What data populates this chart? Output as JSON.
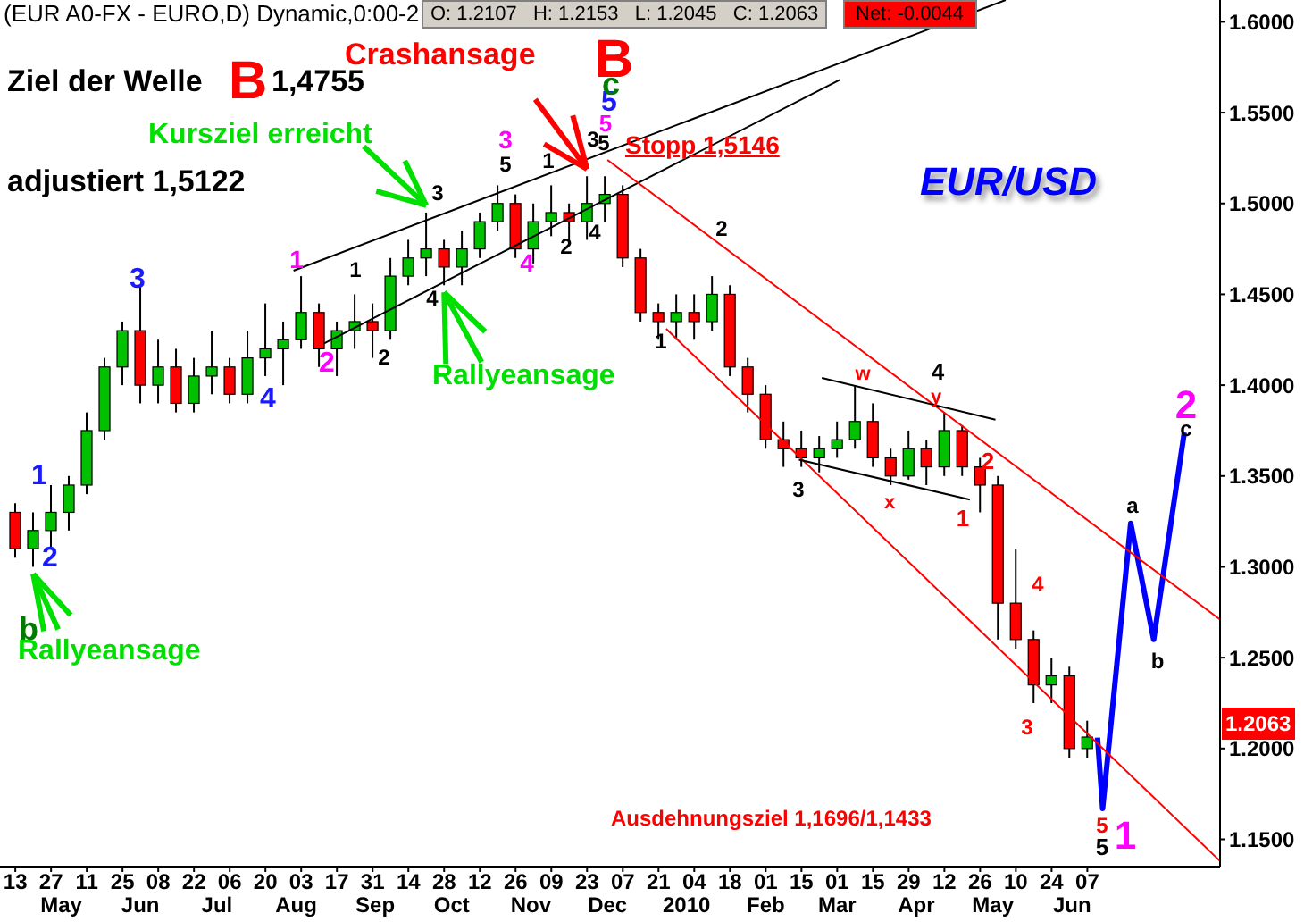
{
  "chart_data": {
    "type": "candlestick",
    "x": [
      "2009-04-13",
      "2009-04-20",
      "2009-04-27",
      "2009-05-04",
      "2009-05-11",
      "2009-05-18",
      "2009-05-25",
      "2009-06-01",
      "2009-06-08",
      "2009-06-15",
      "2009-06-22",
      "2009-06-29",
      "2009-07-06",
      "2009-07-13",
      "2009-07-20",
      "2009-07-27",
      "2009-08-03",
      "2009-08-10",
      "2009-08-17",
      "2009-08-24",
      "2009-08-31",
      "2009-09-07",
      "2009-09-14",
      "2009-09-21",
      "2009-09-28",
      "2009-10-05",
      "2009-10-12",
      "2009-10-19",
      "2009-10-26",
      "2009-11-02",
      "2009-11-09",
      "2009-11-16",
      "2009-11-23",
      "2009-11-30",
      "2009-12-07",
      "2009-12-14",
      "2009-12-21",
      "2009-12-28",
      "2010-01-04",
      "2010-01-11",
      "2010-01-18",
      "2010-01-25",
      "2010-02-01",
      "2010-02-08",
      "2010-02-15",
      "2010-02-22",
      "2010-03-01",
      "2010-03-08",
      "2010-03-15",
      "2010-03-22",
      "2010-03-29",
      "2010-04-05",
      "2010-04-12",
      "2010-04-19",
      "2010-04-26",
      "2010-05-03",
      "2010-05-10",
      "2010-05-17",
      "2010-05-24",
      "2010-05-31",
      "2010-06-07"
    ],
    "ohlc": [
      [
        1.33,
        1.335,
        1.305,
        1.31
      ],
      [
        1.31,
        1.33,
        1.3,
        1.32
      ],
      [
        1.32,
        1.345,
        1.31,
        1.33
      ],
      [
        1.33,
        1.35,
        1.32,
        1.345
      ],
      [
        1.345,
        1.385,
        1.34,
        1.375
      ],
      [
        1.375,
        1.415,
        1.37,
        1.41
      ],
      [
        1.41,
        1.435,
        1.4,
        1.43
      ],
      [
        1.43,
        1.455,
        1.39,
        1.4
      ],
      [
        1.4,
        1.425,
        1.39,
        1.41
      ],
      [
        1.41,
        1.42,
        1.385,
        1.39
      ],
      [
        1.39,
        1.415,
        1.385,
        1.405
      ],
      [
        1.405,
        1.43,
        1.395,
        1.41
      ],
      [
        1.41,
        1.415,
        1.39,
        1.395
      ],
      [
        1.395,
        1.43,
        1.39,
        1.415
      ],
      [
        1.415,
        1.445,
        1.405,
        1.42
      ],
      [
        1.42,
        1.435,
        1.4,
        1.425
      ],
      [
        1.425,
        1.46,
        1.42,
        1.44
      ],
      [
        1.44,
        1.445,
        1.41,
        1.42
      ],
      [
        1.42,
        1.435,
        1.405,
        1.43
      ],
      [
        1.43,
        1.45,
        1.42,
        1.435
      ],
      [
        1.435,
        1.445,
        1.415,
        1.43
      ],
      [
        1.43,
        1.47,
        1.425,
        1.46
      ],
      [
        1.46,
        1.48,
        1.455,
        1.47
      ],
      [
        1.47,
        1.495,
        1.46,
        1.475
      ],
      [
        1.475,
        1.48,
        1.455,
        1.465
      ],
      [
        1.465,
        1.485,
        1.455,
        1.475
      ],
      [
        1.475,
        1.495,
        1.47,
        1.49
      ],
      [
        1.49,
        1.51,
        1.485,
        1.5
      ],
      [
        1.5,
        1.505,
        1.47,
        1.475
      ],
      [
        1.475,
        1.5,
        1.467,
        1.49
      ],
      [
        1.49,
        1.51,
        1.482,
        1.495
      ],
      [
        1.495,
        1.5,
        1.478,
        1.49
      ],
      [
        1.49,
        1.515,
        1.48,
        1.5
      ],
      [
        1.5,
        1.515,
        1.49,
        1.505
      ],
      [
        1.505,
        1.51,
        1.465,
        1.47
      ],
      [
        1.47,
        1.475,
        1.435,
        1.44
      ],
      [
        1.44,
        1.445,
        1.425,
        1.435
      ],
      [
        1.435,
        1.45,
        1.425,
        1.44
      ],
      [
        1.44,
        1.45,
        1.425,
        1.435
      ],
      [
        1.435,
        1.46,
        1.43,
        1.45
      ],
      [
        1.45,
        1.455,
        1.405,
        1.41
      ],
      [
        1.41,
        1.415,
        1.385,
        1.395
      ],
      [
        1.395,
        1.4,
        1.365,
        1.37
      ],
      [
        1.37,
        1.38,
        1.355,
        1.365
      ],
      [
        1.365,
        1.375,
        1.355,
        1.36
      ],
      [
        1.36,
        1.372,
        1.352,
        1.365
      ],
      [
        1.365,
        1.38,
        1.36,
        1.37
      ],
      [
        1.37,
        1.4,
        1.365,
        1.38
      ],
      [
        1.38,
        1.39,
        1.355,
        1.36
      ],
      [
        1.36,
        1.365,
        1.345,
        1.35
      ],
      [
        1.35,
        1.375,
        1.348,
        1.365
      ],
      [
        1.365,
        1.37,
        1.345,
        1.355
      ],
      [
        1.355,
        1.385,
        1.35,
        1.375
      ],
      [
        1.375,
        1.378,
        1.35,
        1.355
      ],
      [
        1.355,
        1.36,
        1.33,
        1.345
      ],
      [
        1.345,
        1.35,
        1.26,
        1.28
      ],
      [
        1.28,
        1.31,
        1.255,
        1.26
      ],
      [
        1.26,
        1.265,
        1.225,
        1.235
      ],
      [
        1.235,
        1.25,
        1.225,
        1.24
      ],
      [
        1.24,
        1.245,
        1.195,
        1.2
      ],
      [
        1.2,
        1.2153,
        1.195,
        1.2063
      ]
    ],
    "colors": [
      "#ff0000",
      "#00c000",
      "#00c000",
      "#00c000",
      "#00c000",
      "#00c000",
      "#00c000",
      "#ff0000",
      "#00c000",
      "#ff0000",
      "#00c000",
      "#00c000",
      "#ff0000",
      "#00c000",
      "#00c000",
      "#00c000",
      "#00c000",
      "#ff0000",
      "#00c000",
      "#00c000",
      "#ff0000",
      "#00c000",
      "#00c000",
      "#00c000",
      "#ff0000",
      "#00c000",
      "#00c000",
      "#00c000",
      "#ff0000",
      "#00c000",
      "#00c000",
      "#ff0000",
      "#00c000",
      "#00c000",
      "#ff0000",
      "#ff0000",
      "#ff0000",
      "#00c000",
      "#ff0000",
      "#00c000",
      "#ff0000",
      "#ff0000",
      "#ff0000",
      "#ff0000",
      "#ff0000",
      "#00c000",
      "#00c000",
      "#00c000",
      "#ff0000",
      "#ff0000",
      "#00c000",
      "#ff0000",
      "#00c000",
      "#ff0000",
      "#ff0000",
      "#ff0000",
      "#ff0000",
      "#ff0000",
      "#00c000",
      "#ff0000",
      "#00c000"
    ],
    "series": [
      {
        "type": "line",
        "color": "#0000ff",
        "x": [
          "2010-06-11",
          "2010-06-13",
          "2010-06-24",
          "2010-07-03",
          "2010-07-15"
        ],
        "values": [
          1.206,
          1.167,
          1.324,
          1.26,
          1.374
        ]
      },
      {
        "type": "line",
        "color": "#000000",
        "x": [
          "2009-07-31",
          "2010-05-06"
        ],
        "values": [
          1.463,
          1.612
        ]
      },
      {
        "type": "line",
        "color": "#000000",
        "x": [
          "2009-08-12",
          "2010-03-02"
        ],
        "values": [
          1.423,
          1.568
        ]
      },
      {
        "type": "line",
        "color": "#ff0000",
        "x": [
          "2009-12-01",
          "2010-07-29"
        ],
        "values": [
          1.524,
          1.271
        ]
      },
      {
        "type": "line",
        "color": "#ff0000",
        "x": [
          "2009-12-24",
          "2010-07-29"
        ],
        "values": [
          1.431,
          1.138
        ]
      },
      {
        "type": "line",
        "color": "#000000",
        "x": [
          "2010-02-23",
          "2010-05-02"
        ],
        "values": [
          1.404,
          1.381
        ]
      },
      {
        "type": "line",
        "color": "#000000",
        "x": [
          "2010-02-14",
          "2010-04-22"
        ],
        "values": [
          1.359,
          1.337
        ]
      }
    ],
    "xlim": [
      "2009-04-07",
      "2010-07-29"
    ],
    "xticks": [
      {
        "value": "2009-04-13",
        "label": "13"
      },
      {
        "value": "2009-04-27",
        "label": "27"
      },
      {
        "value": "2009-05-11",
        "label": "11"
      },
      {
        "value": "2009-05-25",
        "label": "25"
      },
      {
        "value": "2009-06-08",
        "label": "08"
      },
      {
        "value": "2009-06-22",
        "label": "22"
      },
      {
        "value": "2009-07-06",
        "label": "06"
      },
      {
        "value": "2009-07-20",
        "label": "20"
      },
      {
        "value": "2009-08-03",
        "label": "03"
      },
      {
        "value": "2009-08-17",
        "label": "17"
      },
      {
        "value": "2009-08-31",
        "label": "31"
      },
      {
        "value": "2009-09-14",
        "label": "14"
      },
      {
        "value": "2009-09-28",
        "label": "28"
      },
      {
        "value": "2009-10-12",
        "label": "12"
      },
      {
        "value": "2009-10-26",
        "label": "26"
      },
      {
        "value": "2009-11-09",
        "label": "09"
      },
      {
        "value": "2009-11-23",
        "label": "23"
      },
      {
        "value": "2009-12-07",
        "label": "07"
      },
      {
        "value": "2009-12-21",
        "label": "21"
      },
      {
        "value": "2010-01-04",
        "label": "04"
      },
      {
        "value": "2010-01-18",
        "label": "18"
      },
      {
        "value": "2010-02-01",
        "label": "01"
      },
      {
        "value": "2010-02-15",
        "label": "15"
      },
      {
        "value": "2010-03-01",
        "label": "01"
      },
      {
        "value": "2010-03-15",
        "label": "15"
      },
      {
        "value": "2010-03-29",
        "label": "29"
      },
      {
        "value": "2010-04-12",
        "label": "12"
      },
      {
        "value": "2010-04-26",
        "label": "26"
      },
      {
        "value": "2010-05-10",
        "label": "10"
      },
      {
        "value": "2010-05-24",
        "label": "24"
      },
      {
        "value": "2010-06-07",
        "label": "07"
      }
    ],
    "x2lim": [
      "2009-04-07",
      "2010-07-29"
    ],
    "x2ticks": [
      {
        "value": "2009-05-01",
        "label": "May"
      },
      {
        "value": "2009-06-01",
        "label": "Jun"
      },
      {
        "value": "2009-07-01",
        "label": "Jul"
      },
      {
        "value": "2009-08-01",
        "label": "Aug"
      },
      {
        "value": "2009-09-01",
        "label": "Sep"
      },
      {
        "value": "2009-10-01",
        "label": "Oct"
      },
      {
        "value": "2009-11-01",
        "label": "Nov"
      },
      {
        "value": "2009-12-01",
        "label": "Dec"
      },
      {
        "value": "2010-01-01",
        "label": "2010"
      },
      {
        "value": "2010-02-01",
        "label": "Feb"
      },
      {
        "value": "2010-03-01",
        "label": "Mar"
      },
      {
        "value": "2010-04-01",
        "label": "Apr"
      },
      {
        "value": "2010-05-01",
        "label": "May"
      },
      {
        "value": "2010-06-01",
        "label": "Jun"
      }
    ],
    "ylim": [
      1.135,
      1.612
    ],
    "yticks": [
      {
        "value": 1.15,
        "label": "1.1500"
      },
      {
        "value": 1.2,
        "label": "1.2000"
      },
      {
        "value": 1.25,
        "label": "1.2500"
      },
      {
        "value": 1.3,
        "label": "1.3000"
      },
      {
        "value": 1.35,
        "label": "1.3500"
      },
      {
        "value": 1.4,
        "label": "1.4000"
      },
      {
        "value": 1.45,
        "label": "1.4500"
      },
      {
        "value": 1.5,
        "label": "1.5000"
      },
      {
        "value": 1.55,
        "label": "1.5500"
      },
      {
        "value": 1.6,
        "label": "1.6000"
      }
    ],
    "annotations": [
      "(EUR A0-FX - EURO,D) Dynamic,0:00-2",
      "O: 1.2107   H: 1.2153   L: 1.2045   C: 1.2063",
      "Net: -0.0044",
      "Ziel der Welle",
      "B",
      "1,4755",
      "adjustiert 1,5122",
      {
        "text": "Kursziel erreicht",
        "x": "2009-09-21",
        "y": 1.495
      },
      {
        "text": "Crashansage",
        "x": "2009-11-23",
        "y": 1.515
      },
      "B",
      "Stopp 1,5146",
      "EUR/USD",
      {
        "text": "Rallyeansage",
        "x": "2009-09-28",
        "y": 1.455
      },
      {
        "text": "Rallyeansage",
        "x": "2009-04-20",
        "y": 1.3
      },
      "Ausdehnungsziel 1,1696/1,1433",
      "1",
      "2",
      "b",
      "3",
      "4",
      "1",
      "2",
      "1",
      "2",
      "3",
      "4",
      "3",
      "5",
      "4",
      "1",
      "2",
      "3",
      "4",
      "5",
      "5",
      "5",
      "c",
      "1",
      "2",
      "3",
      "w",
      "x",
      "4",
      "y",
      "1",
      "2",
      "3",
      "4",
      "a",
      "b",
      "2",
      "c",
      "5",
      "5",
      "1",
      "1.2063"
    ]
  }
}
